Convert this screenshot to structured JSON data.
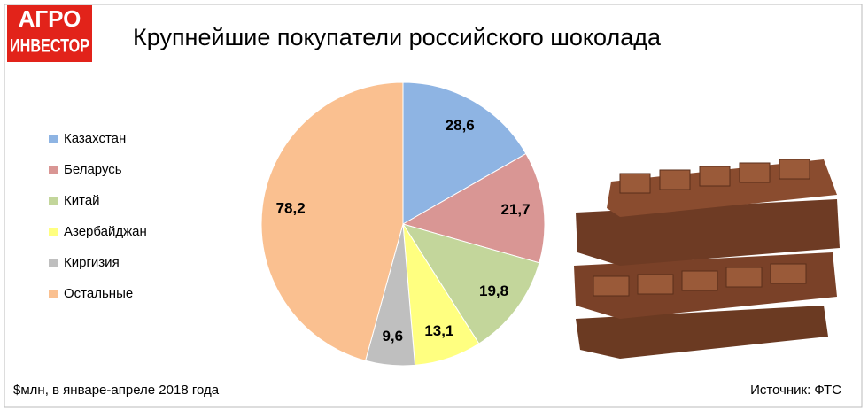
{
  "logo": {
    "line1": "АГРО",
    "line2": "ИНВЕСТОР"
  },
  "chart_data": {
    "type": "pie",
    "title": "Крупнейшие покупатели российского шоколада",
    "categories": [
      "Казахстан",
      "Беларусь",
      "Китай",
      "Азербайджан",
      "Киргизия",
      "Остальные"
    ],
    "values": [
      28.6,
      21.7,
      19.8,
      13.1,
      9.6,
      78.2
    ],
    "value_labels": [
      "28,6",
      "21,7",
      "19,8",
      "13,1",
      "9,6",
      "78,2"
    ],
    "colors": [
      "#8eb4e3",
      "#d99694",
      "#c3d69b",
      "#ffff80",
      "#bfbfbf",
      "#fac090"
    ],
    "legend": "left",
    "note": "$млн, в январе-апреле 2018 года",
    "source": "Источник: ФТС"
  }
}
